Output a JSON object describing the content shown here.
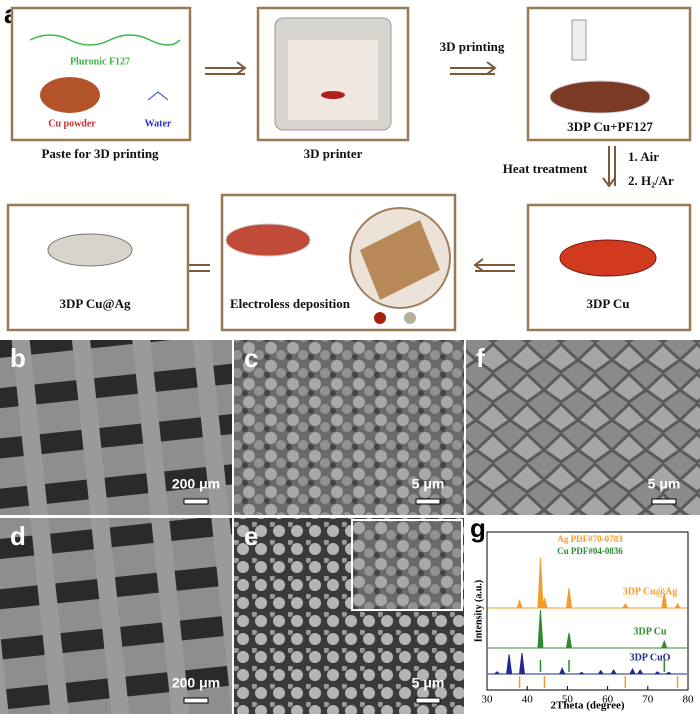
{
  "panel_a": {
    "label": "a",
    "paste": {
      "polymer": "Pluronic F127",
      "powder": "Cu powder",
      "water": "Water",
      "caption": "Paste for 3D printing"
    },
    "printer": {
      "caption": "3D printer"
    },
    "arrow_print": "3D printing",
    "printed": {
      "caption": "3DP Cu+PF127"
    },
    "heat": {
      "title": "Heat treatment",
      "step1": "1. Air",
      "step2": "2. H₂/Ar"
    },
    "sintered": {
      "caption": "3DP Cu"
    },
    "deposition": {
      "caption": "Electroless deposition"
    },
    "final": {
      "caption": "3DP Cu@Ag"
    }
  },
  "sem_panels": [
    {
      "label": "b",
      "scale_bar": "200 μm"
    },
    {
      "label": "c",
      "scale_bar": "5 μm"
    },
    {
      "label": "f",
      "scale_bar": "5 μm"
    },
    {
      "label": "d",
      "scale_bar": "200 μm"
    },
    {
      "label": "e",
      "scale_bar": "5 μm"
    }
  ],
  "xrd": {
    "label": "g",
    "x_label": "2Theta (degree)",
    "y_label": "Intensity (a.u.)",
    "xlim": [
      30,
      80
    ],
    "xticks": [
      30,
      40,
      50,
      60,
      70,
      80
    ],
    "references": [
      {
        "name": "Ag PDF#70-0783",
        "color": "#f39c2a",
        "peaks": [
          38.1,
          44.3,
          64.4,
          77.4
        ]
      },
      {
        "name": "Cu PDF#04-0836",
        "color": "#2e8b2e",
        "peaks": [
          43.3,
          50.4,
          74.1
        ]
      }
    ],
    "series": [
      {
        "name": "3DP Cu@Ag",
        "color": "#f39c2a",
        "peaks": [
          38.1,
          43.3,
          44.3,
          50.4,
          64.4,
          74.1,
          77.4
        ],
        "heights": [
          15,
          100,
          20,
          40,
          8,
          30,
          8
        ]
      },
      {
        "name": "3DP Cu",
        "color": "#2e8b2e",
        "peaks": [
          43.3,
          50.4,
          74.1
        ],
        "heights": [
          100,
          40,
          18
        ]
      },
      {
        "name": "3DP CuO",
        "color": "#1f2a8c",
        "peaks": [
          32.5,
          35.5,
          38.7,
          48.7,
          53.5,
          58.3,
          61.5,
          66.2,
          68.1,
          72.4,
          75.2
        ],
        "heights": [
          8,
          70,
          75,
          20,
          6,
          12,
          14,
          18,
          14,
          8,
          6
        ]
      }
    ]
  }
}
